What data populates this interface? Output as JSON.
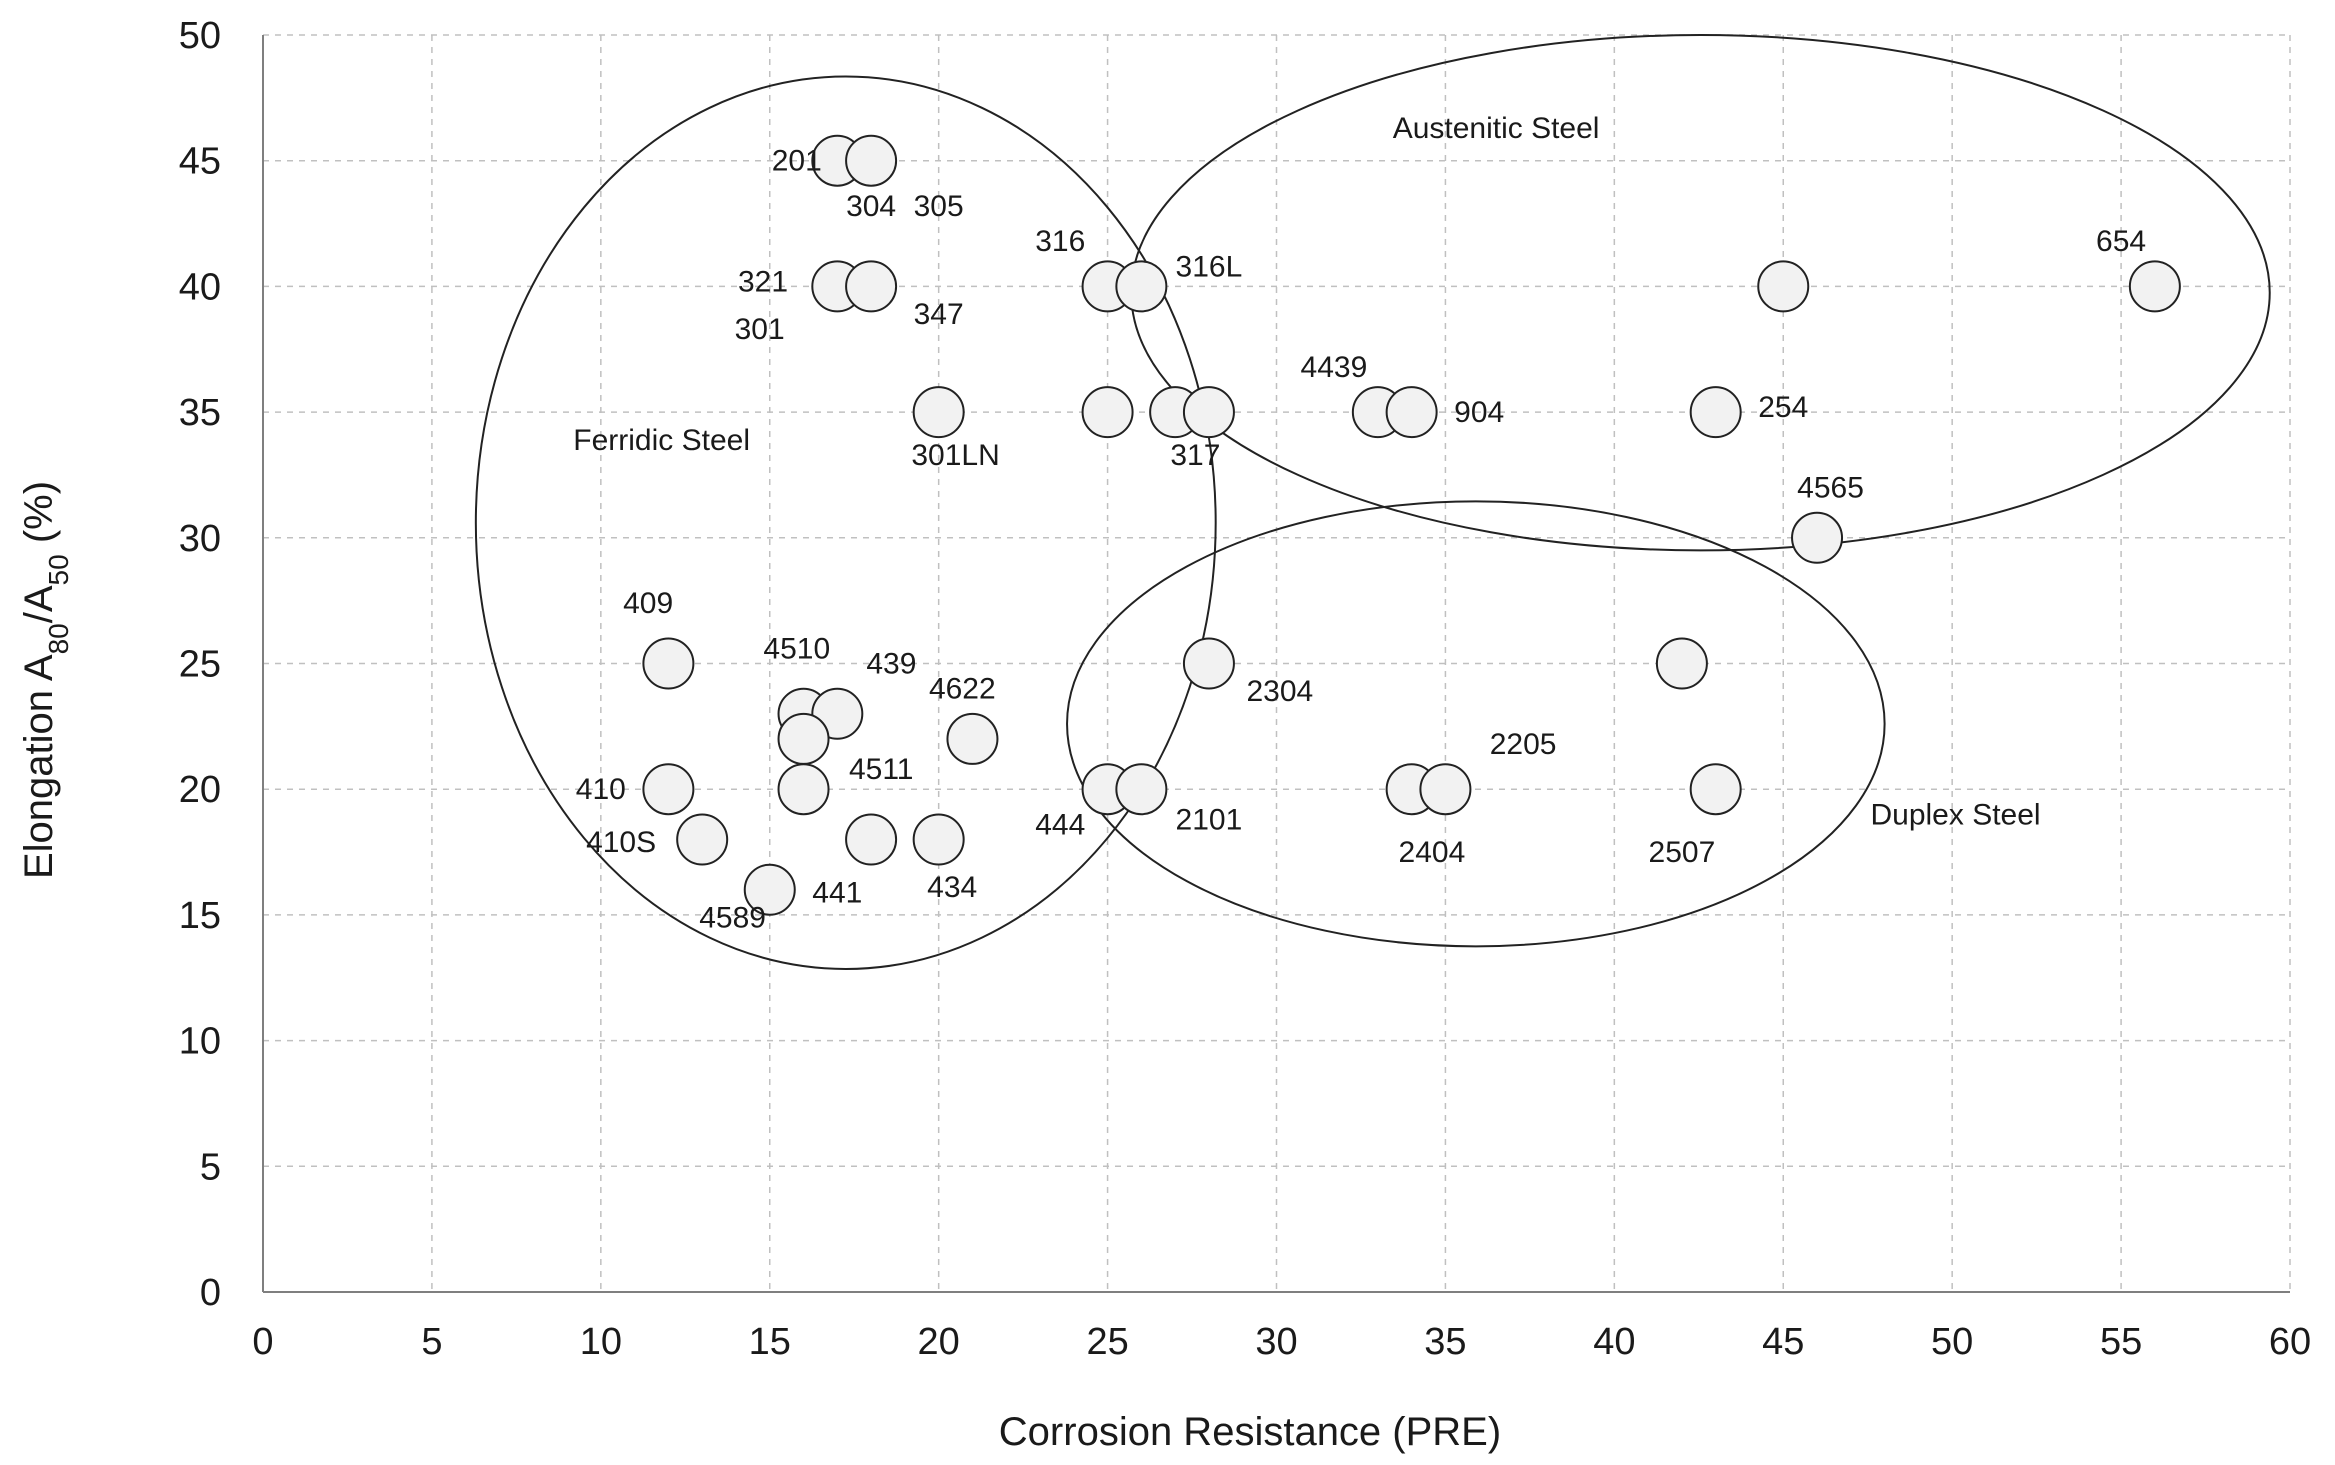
{
  "chart_data": {
    "type": "scatter",
    "xlabel": "Corrosion Resistance (PRE)",
    "ylabel": {
      "prefix": "Elongation A",
      "sub1": "80",
      "mid": "/A",
      "sub2": "50",
      "suffix": " (%)"
    },
    "xlim": [
      0,
      60
    ],
    "ylim": [
      0,
      50
    ],
    "xticks": [
      0,
      5,
      10,
      15,
      20,
      25,
      30,
      35,
      40,
      45,
      50,
      55,
      60
    ],
    "yticks": [
      0,
      5,
      10,
      15,
      20,
      25,
      30,
      35,
      40,
      45,
      50
    ],
    "grid": true,
    "points": [
      {
        "x": 17,
        "y": 45
      },
      {
        "x": 18,
        "y": 45
      },
      {
        "x": 17,
        "y": 40
      },
      {
        "x": 18,
        "y": 40
      },
      {
        "x": 25,
        "y": 40
      },
      {
        "x": 26,
        "y": 40
      },
      {
        "x": 45,
        "y": 40
      },
      {
        "x": 56,
        "y": 40
      },
      {
        "x": 20,
        "y": 35
      },
      {
        "x": 25,
        "y": 35
      },
      {
        "x": 27,
        "y": 35
      },
      {
        "x": 28,
        "y": 35
      },
      {
        "x": 33,
        "y": 35
      },
      {
        "x": 34,
        "y": 35
      },
      {
        "x": 43,
        "y": 35
      },
      {
        "x": 46,
        "y": 30
      },
      {
        "x": 12,
        "y": 25
      },
      {
        "x": 28,
        "y": 25
      },
      {
        "x": 42,
        "y": 25
      },
      {
        "x": 16,
        "y": 23
      },
      {
        "x": 17,
        "y": 23
      },
      {
        "x": 16,
        "y": 22
      },
      {
        "x": 21,
        "y": 22
      },
      {
        "x": 12,
        "y": 20
      },
      {
        "x": 16,
        "y": 20
      },
      {
        "x": 25,
        "y": 20
      },
      {
        "x": 26,
        "y": 20
      },
      {
        "x": 34,
        "y": 20
      },
      {
        "x": 35,
        "y": 20
      },
      {
        "x": 43,
        "y": 20
      },
      {
        "x": 13,
        "y": 18
      },
      {
        "x": 18,
        "y": 18
      },
      {
        "x": 20,
        "y": 18
      },
      {
        "x": 15,
        "y": 16
      }
    ],
    "annotations": [
      {
        "text": "201",
        "x": 15.8,
        "y": 45.0
      },
      {
        "text": "304",
        "x": 18.0,
        "y": 43.2
      },
      {
        "text": "305",
        "x": 20.0,
        "y": 43.2
      },
      {
        "text": "316",
        "x": 23.6,
        "y": 41.8
      },
      {
        "text": "316L",
        "x": 28.0,
        "y": 40.8
      },
      {
        "text": "654",
        "x": 55.0,
        "y": 41.8
      },
      {
        "text": "321",
        "x": 14.8,
        "y": 40.2
      },
      {
        "text": "347",
        "x": 20.0,
        "y": 38.9
      },
      {
        "text": "301",
        "x": 14.7,
        "y": 38.3
      },
      {
        "text": "4439",
        "x": 31.7,
        "y": 36.8
      },
      {
        "text": "904",
        "x": 36.0,
        "y": 35.0
      },
      {
        "text": "254",
        "x": 45.0,
        "y": 35.2
      },
      {
        "text": "301LN",
        "x": 20.5,
        "y": 33.3
      },
      {
        "text": "317",
        "x": 27.6,
        "y": 33.3
      },
      {
        "text": "4565",
        "x": 46.4,
        "y": 32.0
      },
      {
        "text": "409",
        "x": 11.4,
        "y": 27.4
      },
      {
        "text": "4510",
        "x": 15.8,
        "y": 25.6
      },
      {
        "text": "439",
        "x": 18.6,
        "y": 25.0
      },
      {
        "text": "4622",
        "x": 20.7,
        "y": 24.0
      },
      {
        "text": "2304",
        "x": 30.1,
        "y": 23.9
      },
      {
        "text": "2205",
        "x": 37.3,
        "y": 21.8
      },
      {
        "text": "4511",
        "x": 18.3,
        "y": 20.8
      },
      {
        "text": "410",
        "x": 10.0,
        "y": 20.0
      },
      {
        "text": "444",
        "x": 23.6,
        "y": 18.6
      },
      {
        "text": "2101",
        "x": 28.0,
        "y": 18.8
      },
      {
        "text": "410S",
        "x": 10.6,
        "y": 17.9
      },
      {
        "text": "2404",
        "x": 34.6,
        "y": 17.5
      },
      {
        "text": "2507",
        "x": 42.0,
        "y": 17.5
      },
      {
        "text": "441",
        "x": 17.0,
        "y": 15.9
      },
      {
        "text": "434",
        "x": 20.4,
        "y": 16.1
      },
      {
        "text": "4589",
        "x": 13.9,
        "y": 14.9
      }
    ],
    "groups": [
      {
        "name": "Ferridic Steel",
        "label_x": 11.8,
        "label_y": 33.9,
        "cx": 17.25,
        "cy": 30.6,
        "rx": 10.95,
        "ry": 17.75
      },
      {
        "name": "Austenitic Steel",
        "label_x": 36.5,
        "label_y": 46.3,
        "cx": 42.55,
        "cy": 39.75,
        "rx": 16.85,
        "ry": 10.25
      },
      {
        "name": "Duplex Steel",
        "label_x": 50.1,
        "label_y": 19.0,
        "cx": 35.9,
        "cy": 22.6,
        "rx": 12.1,
        "ry": 8.85
      }
    ]
  }
}
